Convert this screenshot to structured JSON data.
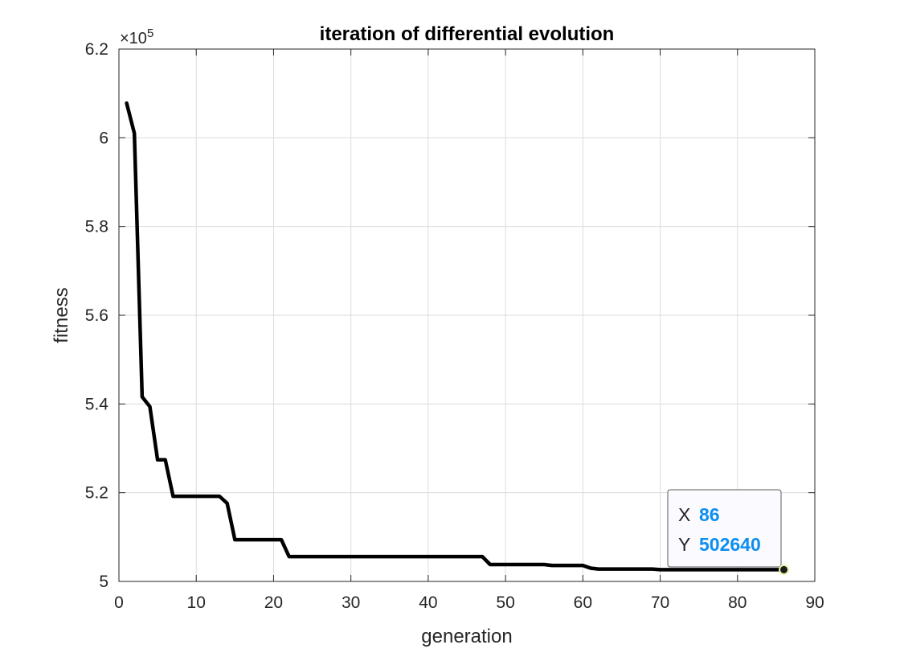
{
  "chart_data": {
    "type": "line",
    "title": "iteration of differential evolution",
    "xlabel": "generation",
    "ylabel": "fitness",
    "xlim": [
      0,
      90
    ],
    "ylim": [
      500000,
      620000
    ],
    "xticks": [
      0,
      10,
      20,
      30,
      40,
      50,
      60,
      70,
      80,
      90
    ],
    "yticks": [
      500000,
      520000,
      540000,
      560000,
      580000,
      600000,
      620000
    ],
    "ytick_labels": [
      "5",
      "5.2",
      "5.4",
      "5.6",
      "5.8",
      "6",
      "6.2"
    ],
    "y_exponent_base": "×10",
    "y_exponent_power": "5",
    "grid": true,
    "series": [
      {
        "color": "#000000",
        "x": [
          1,
          2,
          3,
          4,
          5,
          6,
          7,
          13,
          14,
          15,
          21,
          22,
          47,
          48,
          55,
          56,
          60,
          61,
          62,
          69,
          70,
          86
        ],
        "y": [
          607800,
          601000,
          541600,
          539400,
          527400,
          527400,
          519200,
          519200,
          517600,
          509400,
          509400,
          505600,
          505600,
          503800,
          503800,
          503600,
          503600,
          503000,
          502800,
          502800,
          502640,
          502640
        ]
      }
    ],
    "datatip": {
      "x_key": "X",
      "x_value": "86",
      "y_key": "Y",
      "y_value": "502640",
      "x": 86,
      "y": 502640,
      "value_color": "#0d8ef0"
    }
  }
}
